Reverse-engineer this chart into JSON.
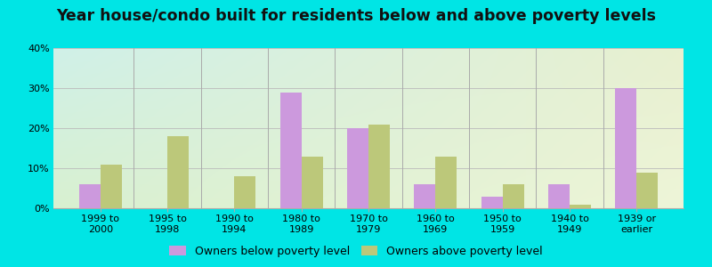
{
  "title": "Year house/condo built for residents below and above poverty levels",
  "categories": [
    "1999 to\n2000",
    "1995 to\n1998",
    "1990 to\n1994",
    "1980 to\n1989",
    "1970 to\n1979",
    "1960 to\n1969",
    "1950 to\n1959",
    "1940 to\n1949",
    "1939 or\nearlier"
  ],
  "below_poverty": [
    6,
    0,
    0,
    29,
    20,
    6,
    3,
    6,
    30
  ],
  "above_poverty": [
    11,
    18,
    8,
    13,
    21,
    13,
    6,
    1,
    9
  ],
  "below_color": "#cc99dd",
  "above_color": "#bcc87a",
  "ylim": [
    0,
    40
  ],
  "yticks": [
    0,
    10,
    20,
    30,
    40
  ],
  "outer_bg": "#00e5e5",
  "legend_below": "Owners below poverty level",
  "legend_above": "Owners above poverty level",
  "bar_width": 0.32,
  "title_fontsize": 12.5,
  "tick_fontsize": 8,
  "legend_fontsize": 9,
  "grid_color": "#cccccc",
  "separator_color": "#aaaaaa"
}
